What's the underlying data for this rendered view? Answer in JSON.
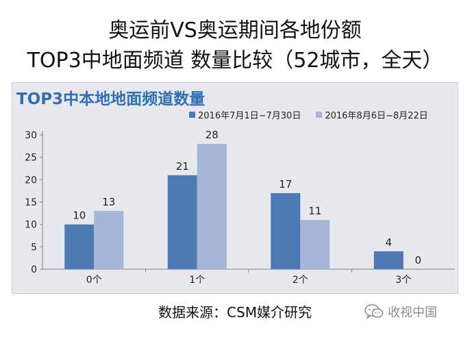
{
  "header": {
    "line1": "奥运前VS奥运期间各地份额",
    "line2": "TOP3中地面频道 数量比较（52城市，全天）"
  },
  "footer": {
    "source": "数据来源：CSM媒介研究"
  },
  "watermark": {
    "text": "收视中国",
    "icon": "wechat-icon"
  },
  "colors": {
    "series1": "#4f79b5",
    "series2": "#a5b6d8",
    "title": "#2f6fb6"
  },
  "chart_data": {
    "type": "bar",
    "title": "TOP3中本地地面频道数量",
    "categories": [
      "0个",
      "1个",
      "2个",
      "3个"
    ],
    "series": [
      {
        "name": "2016年7月1日−7月30日",
        "values": [
          10,
          21,
          17,
          4
        ]
      },
      {
        "name": "2016年8月6日−8月22日",
        "values": [
          13,
          28,
          11,
          0
        ]
      }
    ],
    "ylim": [
      0,
      30
    ],
    "yticks": [
      0,
      5,
      10,
      15,
      20,
      25,
      30
    ],
    "xlabel": "",
    "ylabel": "",
    "grid": false,
    "legend": "top-right"
  }
}
